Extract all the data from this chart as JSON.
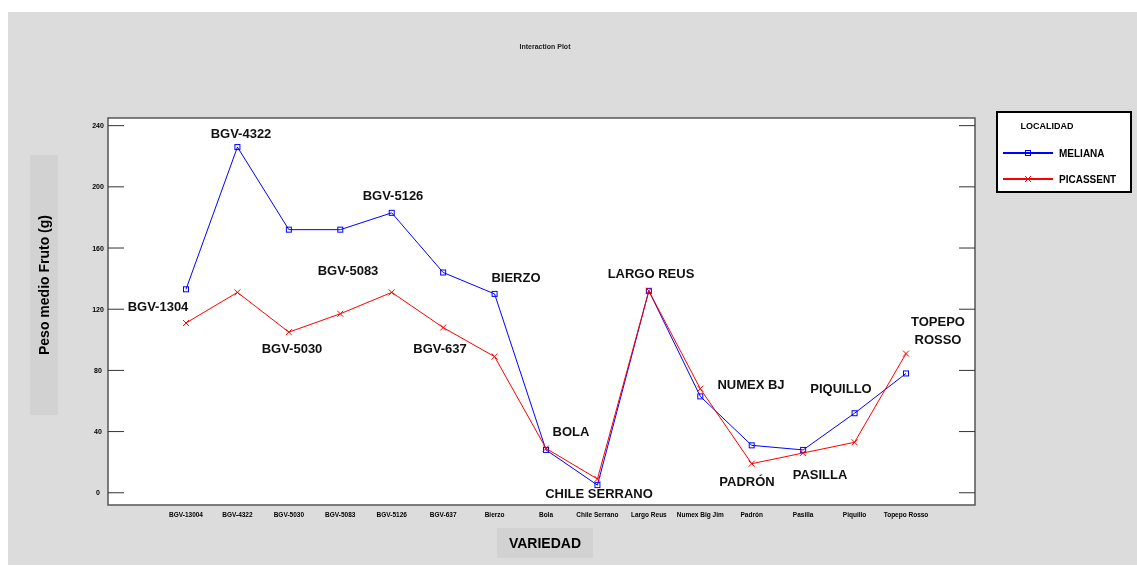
{
  "chart_data": {
    "type": "line",
    "title": "Interaction Plot",
    "xlabel": "VARIEDAD",
    "ylabel": "Peso medio Fruto (g)",
    "legend_title": "LOCALIDAD",
    "legend": "right",
    "grid": false,
    "categories": [
      "BGV-13004",
      "BGV-4322",
      "BGV-5030",
      "BGV-5083",
      "BGV-5126",
      "BGV-637",
      "Bierzo",
      "Bola",
      "Chile Serrano",
      "Largo Reus",
      "Numex Big Jim",
      "Padrón",
      "Pasilla",
      "Piquillo",
      "Topepo Rosso"
    ],
    "ylim": [
      -8,
      245
    ],
    "yticks": [
      0,
      40,
      80,
      120,
      160,
      200,
      240
    ],
    "series": [
      {
        "name": "MELIANA",
        "color": "#0000ff",
        "marker": "square",
        "values": [
          133,
          226,
          172,
          172,
          183,
          144,
          130,
          28,
          5,
          132,
          63,
          31,
          28,
          52,
          78
        ]
      },
      {
        "name": "PICASSENT",
        "color": "#ff0000",
        "marker": "cross",
        "values": [
          111,
          131,
          105,
          117,
          131,
          108,
          89,
          29,
          9,
          132,
          68,
          19,
          26,
          33,
          91
        ]
      }
    ],
    "annotations": [
      "BGV-1304",
      "BGV-4322",
      "BGV-5030",
      "BGV-5083",
      "BGV-5126",
      "BGV-637",
      "BIERZO",
      "BOLA",
      "CHILE SERRANO",
      "LARGO REUS",
      "NUMEX BJ",
      "PADRÓN",
      "PASILLA",
      "PIQUILLO",
      "TOPEPO ROSSO"
    ]
  }
}
